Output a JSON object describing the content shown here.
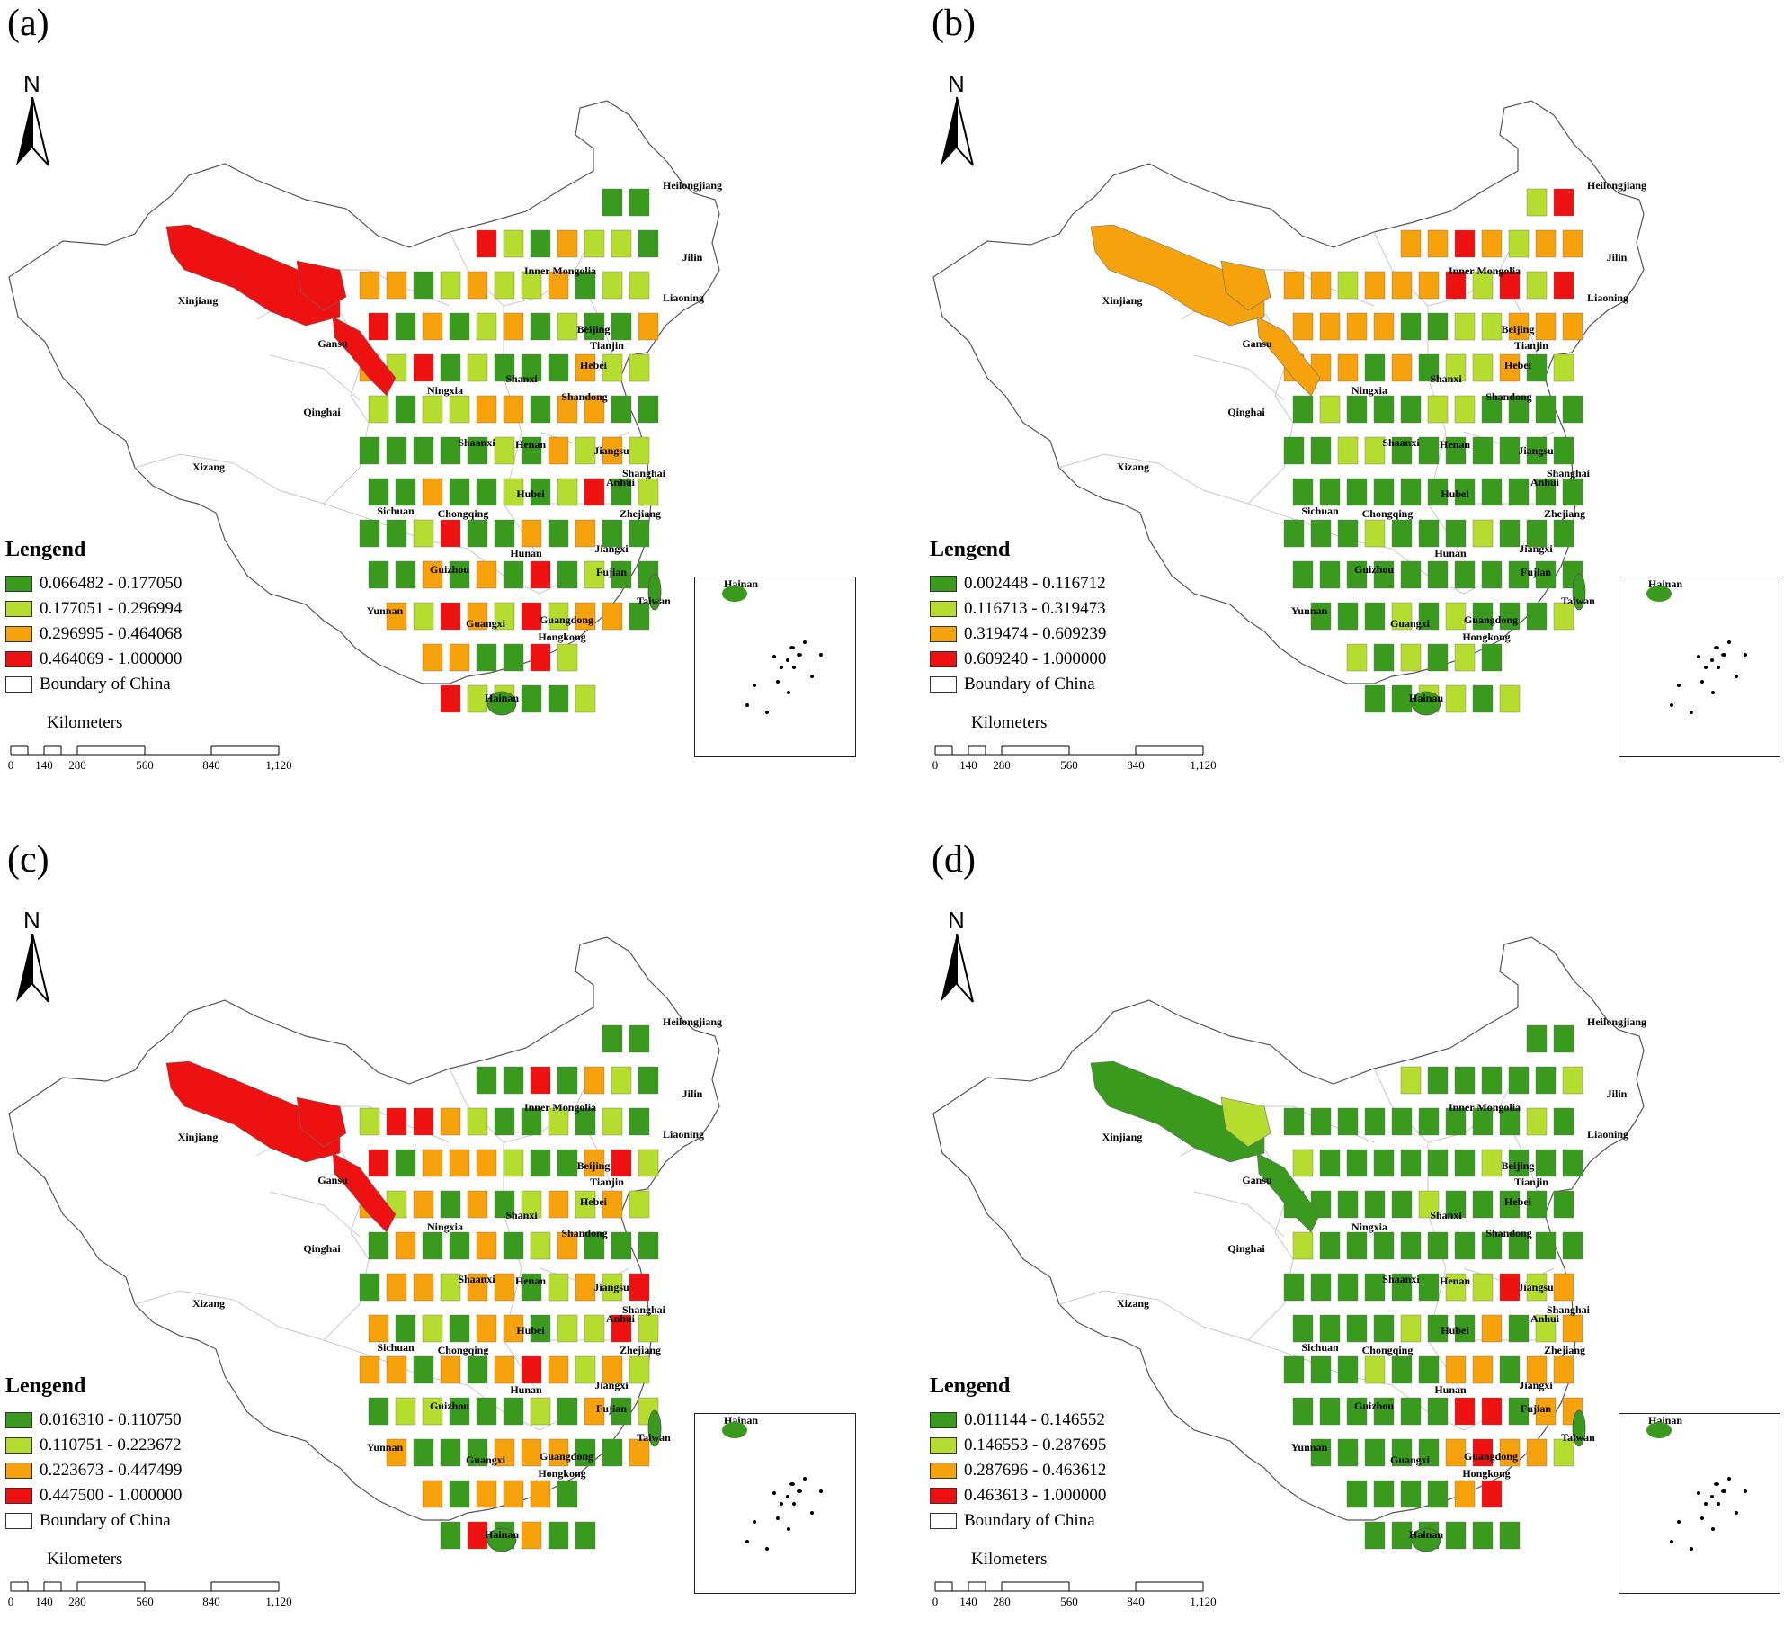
{
  "north_label": "N",
  "legend_title": "Lengend",
  "boundary_label": "Boundary of China",
  "scale": {
    "title": "Kilometers",
    "ticks": [
      "0",
      "140",
      "280",
      "560",
      "840",
      "1,120"
    ]
  },
  "inset_label": "Hainan",
  "colors": {
    "class1": "#3a9a1e",
    "class2": "#b5dc2f",
    "class3": "#f5a20c",
    "class4": "#ee1111",
    "boundary": "#ffffff"
  },
  "provinces": [
    "Heilongjiang",
    "Jilin",
    "Inner Mongolia",
    "Liaoning",
    "Xinjiang",
    "Gansu",
    "Beijing",
    "Tianjin",
    "Hebei",
    "Shanxi",
    "Ningxia",
    "Shandong",
    "Qinghai",
    "Shaanxi",
    "Henan",
    "Jiangsu",
    "Shanghai",
    "Xizang",
    "Anhui",
    "Hubei",
    "Sichuan",
    "Chongqing",
    "Zhejiang",
    "Jiangxi",
    "Hunan",
    "Fujian",
    "Guizhou",
    "Yunnan",
    "Guangxi",
    "Guangdong",
    "Hongkong",
    "Taiwan",
    "Hainan"
  ],
  "panels": [
    {
      "label": "(a)",
      "legend": [
        "0.066482 - 0.177050",
        "0.177051 - 0.296994",
        "0.296995 - 0.464068",
        "0.464069 - 1.000000"
      ],
      "pattern": "a"
    },
    {
      "label": "(b)",
      "legend": [
        "0.002448 - 0.116712",
        "0.116713 - 0.319473",
        "0.319474 - 0.609239",
        "0.609240 - 1.000000"
      ],
      "pattern": "b"
    },
    {
      "label": "(c)",
      "legend": [
        "0.016310 - 0.110750",
        "0.110751 - 0.223672",
        "0.223673 - 0.447499",
        "0.447500 - 1.000000"
      ],
      "pattern": "c"
    },
    {
      "label": "(d)",
      "legend": [
        "0.011144 - 0.146552",
        "0.146553 - 0.287695",
        "0.287696 - 0.463612",
        "0.463613 - 1.000000"
      ],
      "pattern": "d"
    }
  ]
}
